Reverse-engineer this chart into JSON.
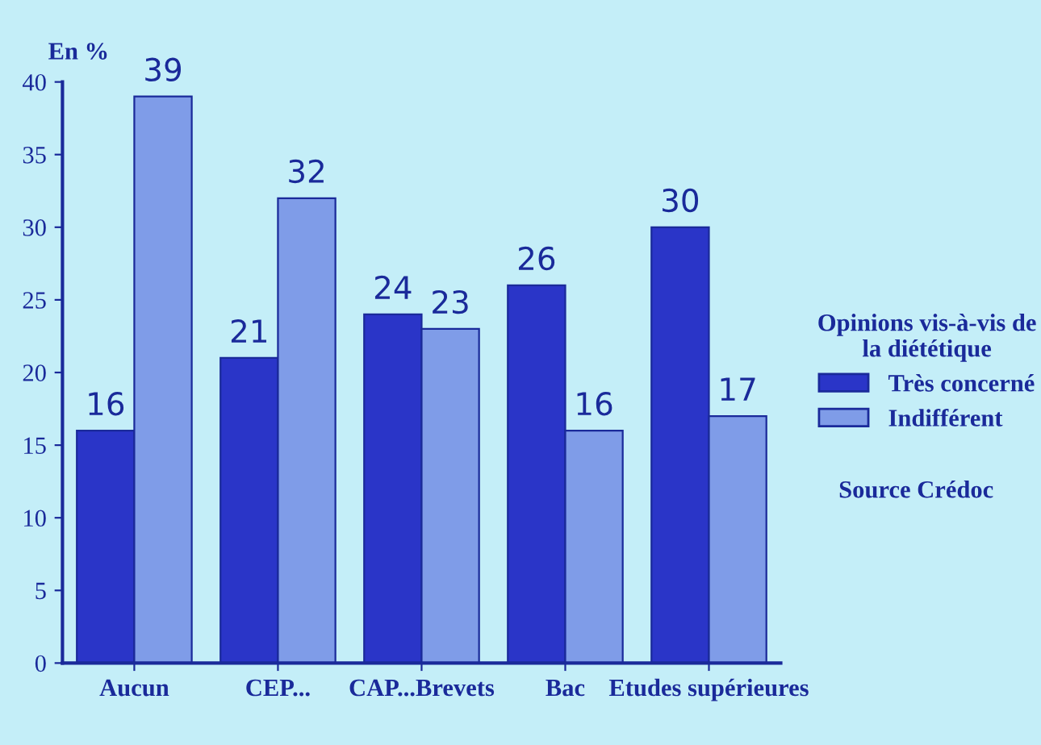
{
  "chart_data": {
    "type": "bar",
    "ylabel": "En %",
    "categories": [
      "Aucun",
      "CEP...",
      "CAP...Brevets",
      "Bac",
      "Etudes supérieures"
    ],
    "series": [
      {
        "name": "Très concerné",
        "color": "#2a35c8",
        "values": [
          16,
          21,
          24,
          26,
          30
        ]
      },
      {
        "name": "Indifférent",
        "color": "#7f9ce8",
        "values": [
          39,
          32,
          23,
          16,
          17
        ]
      }
    ],
    "ylim": [
      0,
      40
    ],
    "yticks": [
      0,
      5,
      10,
      15,
      20,
      25,
      30,
      35,
      40
    ],
    "data_labels": true,
    "grid": false,
    "legend": "right",
    "legend_title": "Opinions vis-à-vis de la diététique",
    "annotations": [
      "Source Crédoc"
    ]
  }
}
